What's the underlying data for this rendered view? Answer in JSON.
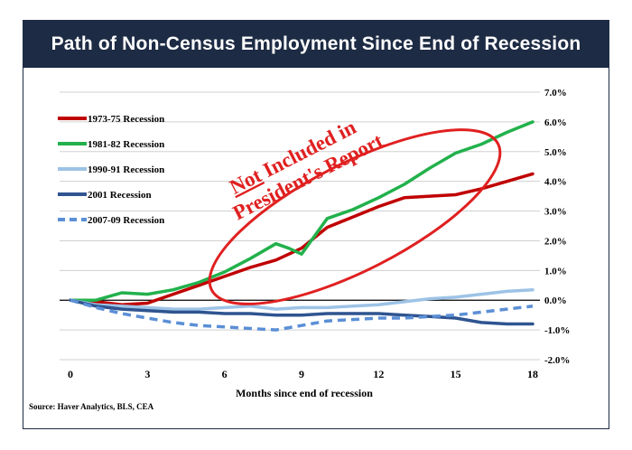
{
  "chart_data": {
    "type": "line",
    "title": "Path of Non-Census Employment Since End of Recession",
    "xlabel": "Months since end of recession",
    "ylabel": "",
    "xlim": [
      0,
      18
    ],
    "ylim": [
      -2.0,
      7.0
    ],
    "x_ticks": [
      0,
      3,
      6,
      9,
      12,
      15,
      18
    ],
    "y_ticks": [
      -2.0,
      -1.0,
      0.0,
      1.0,
      2.0,
      3.0,
      4.0,
      5.0,
      6.0,
      7.0
    ],
    "y_tick_labels": [
      "-2.0%",
      "-1.0%",
      "0.0%",
      "1.0%",
      "2.0%",
      "3.0%",
      "4.0%",
      "5.0%",
      "6.0%",
      "7.0%"
    ],
    "legend_position": "top-left",
    "series": [
      {
        "name": "1973-75 Recession",
        "color": "#c00000",
        "style": "solid",
        "x": [
          0,
          1,
          2,
          3,
          4,
          5,
          6,
          7,
          8,
          9,
          10,
          11,
          12,
          13,
          14,
          15,
          16,
          17,
          18
        ],
        "values": [
          0.0,
          -0.05,
          -0.15,
          -0.1,
          0.2,
          0.5,
          0.8,
          1.1,
          1.35,
          1.75,
          2.45,
          2.8,
          3.15,
          3.45,
          3.5,
          3.55,
          3.75,
          4.0,
          4.25
        ]
      },
      {
        "name": "1981-82 Recession",
        "color": "#22b14c",
        "style": "solid",
        "x": [
          0,
          1,
          2,
          3,
          4,
          5,
          6,
          7,
          8,
          8.5,
          9,
          10,
          11,
          12,
          13,
          14,
          15,
          16,
          17,
          18
        ],
        "values": [
          0.0,
          0.0,
          0.25,
          0.2,
          0.35,
          0.6,
          0.95,
          1.4,
          1.9,
          1.75,
          1.55,
          2.75,
          3.05,
          3.45,
          3.9,
          4.45,
          4.95,
          5.25,
          5.65,
          6.0
        ]
      },
      {
        "name": "1990-91 Recession",
        "color": "#9dc3e6",
        "style": "solid",
        "x": [
          0,
          1,
          2,
          3,
          4,
          5,
          6,
          7,
          8,
          9,
          10,
          11,
          12,
          13,
          14,
          15,
          16,
          17,
          18
        ],
        "values": [
          0.0,
          -0.15,
          -0.2,
          -0.25,
          -0.3,
          -0.3,
          -0.25,
          -0.2,
          -0.3,
          -0.25,
          -0.25,
          -0.2,
          -0.15,
          -0.05,
          0.05,
          0.1,
          0.2,
          0.3,
          0.35
        ]
      },
      {
        "name": "2001 Recession",
        "color": "#2f5490",
        "style": "solid",
        "x": [
          0,
          1,
          2,
          3,
          4,
          5,
          6,
          7,
          8,
          9,
          10,
          11,
          12,
          13,
          14,
          15,
          16,
          17,
          18
        ],
        "values": [
          0.0,
          -0.2,
          -0.3,
          -0.35,
          -0.4,
          -0.4,
          -0.45,
          -0.45,
          -0.5,
          -0.5,
          -0.45,
          -0.45,
          -0.45,
          -0.5,
          -0.55,
          -0.6,
          -0.75,
          -0.8,
          -0.8
        ]
      },
      {
        "name": "2007-09 Recession",
        "color": "#5b8fd6",
        "style": "dashed",
        "x": [
          0,
          1,
          2,
          3,
          4,
          5,
          6,
          7,
          8,
          9,
          10,
          11,
          12,
          13,
          14,
          15,
          16,
          17,
          18
        ],
        "values": [
          0.0,
          -0.25,
          -0.45,
          -0.6,
          -0.75,
          -0.85,
          -0.9,
          -0.95,
          -1.0,
          -0.85,
          -0.7,
          -0.65,
          -0.6,
          -0.6,
          -0.55,
          -0.5,
          -0.4,
          -0.3,
          -0.2
        ]
      }
    ],
    "annotation": {
      "line1_underlined": "Not",
      "line1_rest": " Included in",
      "line2": "President's Report",
      "color": "#e02020",
      "shape": "ellipse"
    },
    "source": "Source: Haver Analytics, BLS, CEA"
  }
}
